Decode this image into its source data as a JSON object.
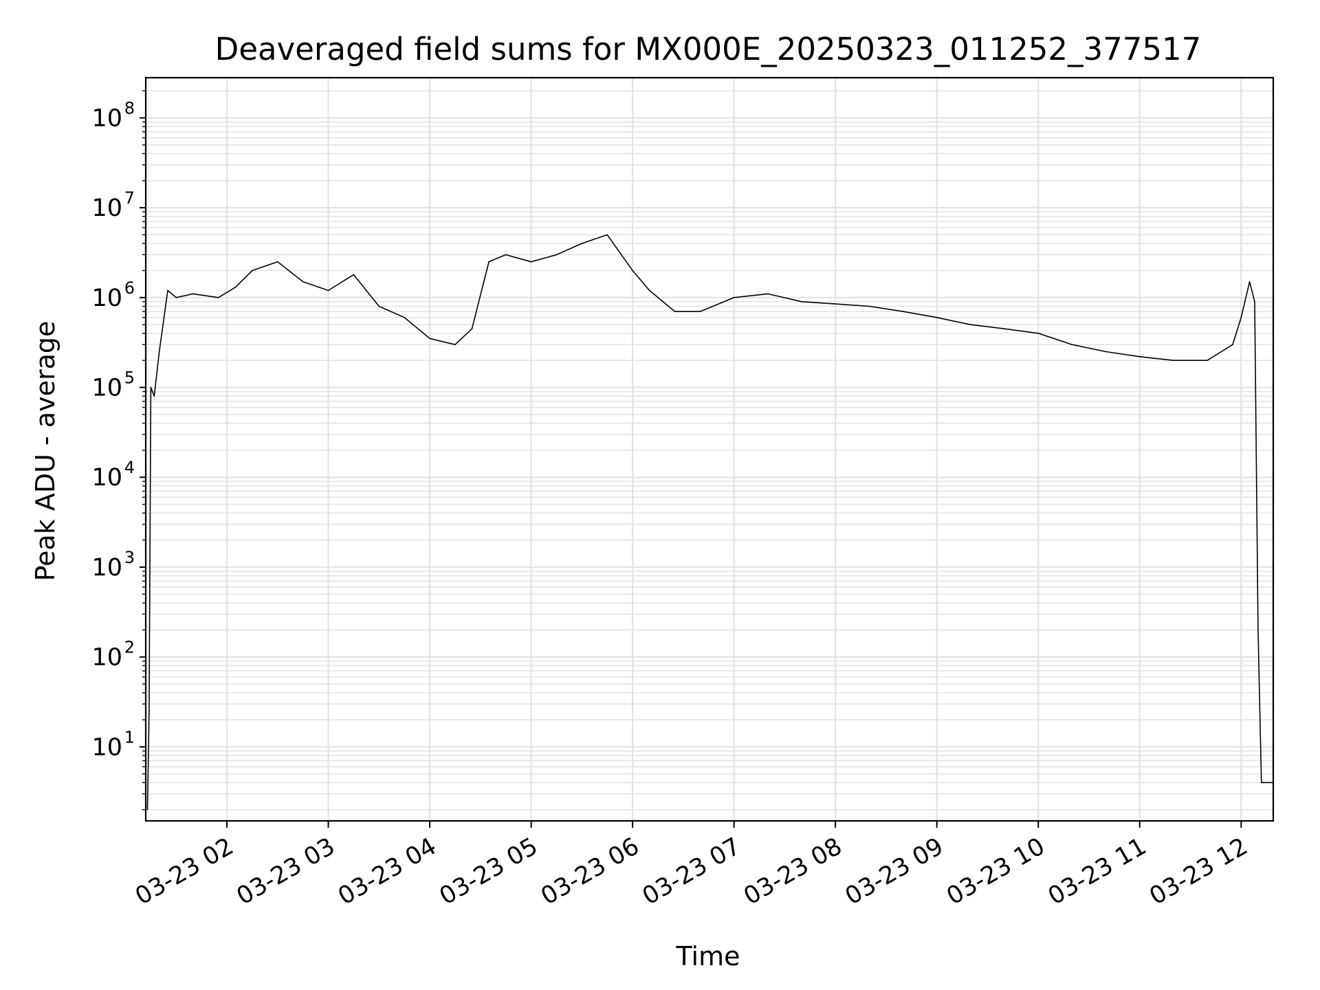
{
  "chart_data": {
    "type": "line",
    "title": "Deaveraged field sums for MX000E_20250323_011252_377517",
    "xlabel": "Time",
    "ylabel": "Peak ADU - average",
    "yscale": "log",
    "grid": true,
    "grid_color": "#e3e3e3",
    "line_color": "#000000",
    "x_ticks": [
      "03-23 02",
      "03-23 03",
      "03-23 04",
      "03-23 05",
      "03-23 06",
      "03-23 07",
      "03-23 08",
      "03-23 09",
      "03-23 10",
      "03-23 11",
      "03-23 12"
    ],
    "y_ticks": [
      {
        "base": "10",
        "exp": "1"
      },
      {
        "base": "10",
        "exp": "2"
      },
      {
        "base": "10",
        "exp": "3"
      },
      {
        "base": "10",
        "exp": "4"
      },
      {
        "base": "10",
        "exp": "5"
      },
      {
        "base": "10",
        "exp": "6"
      },
      {
        "base": "10",
        "exp": "7"
      },
      {
        "base": "10",
        "exp": "8"
      }
    ],
    "xlim": [
      "2025-03-23 01:12",
      "2025-03-23 12:19"
    ],
    "ylim": [
      1.5,
      280000000
    ],
    "series": [
      {
        "x": [
          "2025-03-23 01:13",
          "2025-03-23 01:14",
          "2025-03-23 01:15",
          "2025-03-23 01:17",
          "2025-03-23 01:20",
          "2025-03-23 01:25",
          "2025-03-23 01:30",
          "2025-03-23 01:40",
          "2025-03-23 01:55",
          "2025-03-23 02:05",
          "2025-03-23 02:15",
          "2025-03-23 02:30",
          "2025-03-23 02:45",
          "2025-03-23 03:00",
          "2025-03-23 03:15",
          "2025-03-23 03:30",
          "2025-03-23 03:45",
          "2025-03-23 04:00",
          "2025-03-23 04:15",
          "2025-03-23 04:25",
          "2025-03-23 04:35",
          "2025-03-23 04:45",
          "2025-03-23 05:00",
          "2025-03-23 05:15",
          "2025-03-23 05:30",
          "2025-03-23 05:45",
          "2025-03-23 06:00",
          "2025-03-23 06:10",
          "2025-03-23 06:25",
          "2025-03-23 06:40",
          "2025-03-23 07:00",
          "2025-03-23 07:20",
          "2025-03-23 07:40",
          "2025-03-23 08:00",
          "2025-03-23 08:20",
          "2025-03-23 08:40",
          "2025-03-23 09:00",
          "2025-03-23 09:20",
          "2025-03-23 09:40",
          "2025-03-23 10:00",
          "2025-03-23 10:20",
          "2025-03-23 10:40",
          "2025-03-23 11:00",
          "2025-03-23 11:20",
          "2025-03-23 11:40",
          "2025-03-23 11:55",
          "2025-03-23 12:00",
          "2025-03-23 12:05",
          "2025-03-23 12:08",
          "2025-03-23 12:10",
          "2025-03-23 12:12",
          "2025-03-23 12:19"
        ],
        "y": [
          2,
          25,
          100000,
          80000,
          250000,
          1200000,
          1000000,
          1100000,
          1000000,
          1300000,
          2000000,
          2500000,
          1500000,
          1200000,
          1800000,
          800000,
          600000,
          350000,
          300000,
          450000,
          2500000,
          3000000,
          2500000,
          3000000,
          4000000,
          5000000,
          2000000,
          1200000,
          700000,
          700000,
          1000000,
          1100000,
          900000,
          850000,
          800000,
          700000,
          600000,
          500000,
          450000,
          400000,
          300000,
          250000,
          220000,
          200000,
          200000,
          300000,
          600000,
          1500000,
          900000,
          200,
          4,
          4
        ]
      }
    ]
  }
}
